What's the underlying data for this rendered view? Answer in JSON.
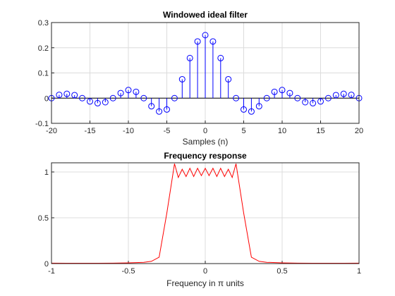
{
  "chart_data": [
    {
      "type": "stem",
      "title": "Windowed ideal filter",
      "xlabel": "Samples (n)",
      "ylabel": "",
      "xlim": [
        -20,
        20
      ],
      "ylim": [
        -0.1,
        0.3
      ],
      "xticks": [
        "-20",
        "-15",
        "-10",
        "-5",
        "0",
        "5",
        "10",
        "15",
        "20"
      ],
      "yticks": [
        "-0.1",
        "0",
        "0.1",
        "0.2",
        "0.3"
      ],
      "grid": true,
      "color": "#0000ff",
      "x": [
        -20,
        -19,
        -18,
        -17,
        -16,
        -15,
        -14,
        -13,
        -12,
        -11,
        -10,
        -9,
        -8,
        -7,
        -6,
        -5,
        -4,
        -3,
        -2,
        -1,
        0,
        1,
        2,
        3,
        4,
        5,
        6,
        7,
        8,
        9,
        10,
        11,
        12,
        13,
        14,
        15,
        16,
        17,
        18,
        19,
        20
      ],
      "y": [
        0,
        0.013,
        0.017,
        0.012,
        0,
        -0.013,
        -0.02,
        -0.016,
        0,
        0.02,
        0.032,
        0.025,
        0,
        -0.032,
        -0.053,
        -0.045,
        0,
        0.075,
        0.159,
        0.225,
        0.25,
        0.225,
        0.159,
        0.075,
        0,
        -0.045,
        -0.053,
        -0.032,
        0,
        0.025,
        0.032,
        0.02,
        0,
        -0.016,
        -0.02,
        -0.013,
        0,
        0.012,
        0.017,
        0.013,
        0
      ]
    },
    {
      "type": "line",
      "title": "Frequency response",
      "xlabel": "Frequency  in  π  units",
      "ylabel": "",
      "xlim": [
        -1,
        1
      ],
      "ylim": [
        0,
        1.1
      ],
      "xticks": [
        "-1",
        "-0.5",
        "0",
        "0.5",
        "1"
      ],
      "yticks": [
        "0",
        "0.5",
        "1"
      ],
      "grid": true,
      "color": "#ff0000",
      "x": [
        -1,
        -0.9,
        -0.8,
        -0.7,
        -0.6,
        -0.5,
        -0.4,
        -0.35,
        -0.3,
        -0.25,
        -0.2,
        -0.175,
        -0.15,
        -0.125,
        -0.1,
        -0.075,
        -0.05,
        -0.025,
        0,
        0.025,
        0.05,
        0.075,
        0.1,
        0.125,
        0.15,
        0.175,
        0.2,
        0.25,
        0.3,
        0.35,
        0.4,
        0.5,
        0.6,
        0.7,
        0.8,
        0.9,
        1
      ],
      "y": [
        0.005,
        0.004,
        0.004,
        0.004,
        0.005,
        0.008,
        0.014,
        0.025,
        0.07,
        0.55,
        1.09,
        0.94,
        1.03,
        0.95,
        1.04,
        0.95,
        1.04,
        0.96,
        1.04,
        0.96,
        1.04,
        0.95,
        1.04,
        0.95,
        1.03,
        0.94,
        1.09,
        0.55,
        0.07,
        0.025,
        0.014,
        0.008,
        0.005,
        0.004,
        0.004,
        0.004,
        0.005
      ]
    }
  ]
}
